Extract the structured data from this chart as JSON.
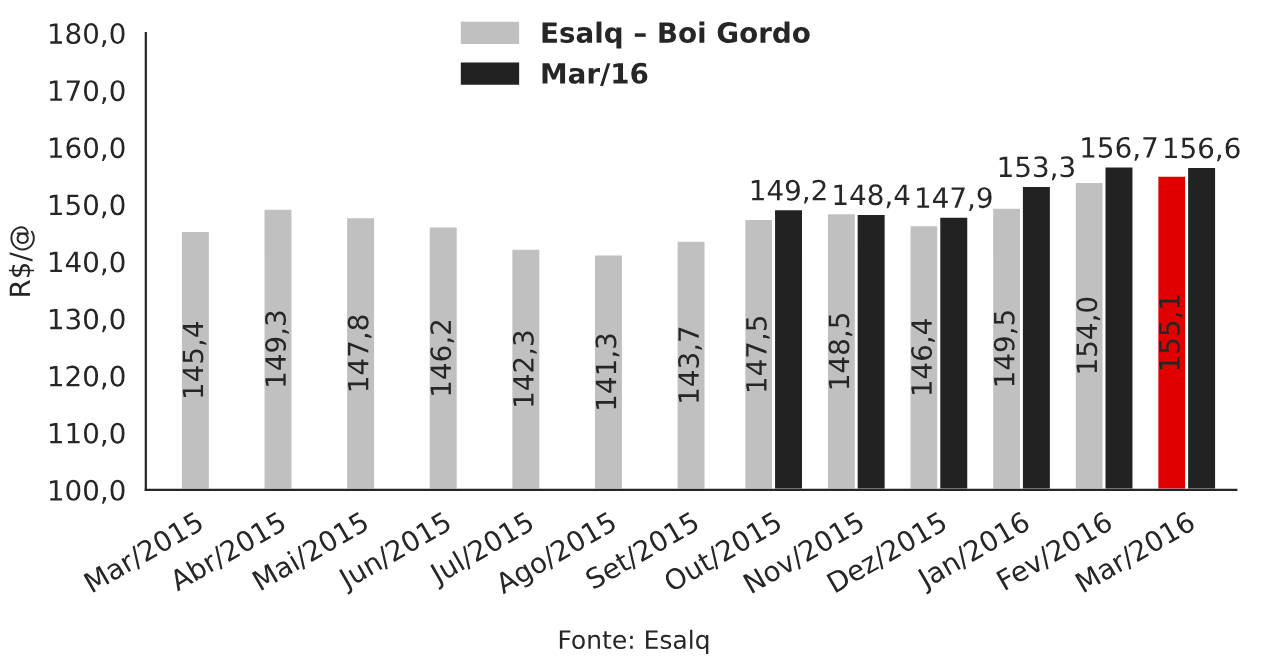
{
  "chart_data": {
    "type": "bar",
    "ylabel": "R$/@",
    "categories": [
      "Mar/2015",
      "Abr/2015",
      "Mai/2015",
      "Jun/2015",
      "Jul/2015",
      "Ago/2015",
      "Set/2015",
      "Out/2015",
      "Nov/2015",
      "Dez/2015",
      "Jan/2016",
      "Fev/2016",
      "Mar/2016"
    ],
    "series": [
      {
        "name": "Esalq – Boi Gordo",
        "color": "#c0c0c0",
        "colors": [
          "#c0c0c0",
          "#c0c0c0",
          "#c0c0c0",
          "#c0c0c0",
          "#c0c0c0",
          "#c0c0c0",
          "#c0c0c0",
          "#c0c0c0",
          "#c0c0c0",
          "#c0c0c0",
          "#c0c0c0",
          "#c0c0c0",
          "#e00000"
        ],
        "values": [
          145.4,
          149.3,
          147.8,
          146.2,
          142.3,
          141.3,
          143.7,
          147.5,
          148.5,
          146.4,
          149.5,
          154.0,
          155.1
        ],
        "value_labels": [
          "145,4",
          "149,3",
          "147,8",
          "146,2",
          "142,3",
          "141,3",
          "143,7",
          "147,5",
          "148,5",
          "146,4",
          "149,5",
          "154,0",
          "155,1"
        ]
      },
      {
        "name": "Mar/16",
        "color": "#222222",
        "values": [
          null,
          null,
          null,
          null,
          null,
          null,
          null,
          149.2,
          148.4,
          147.9,
          153.3,
          156.7,
          156.6
        ],
        "value_labels": [
          null,
          null,
          null,
          null,
          null,
          null,
          null,
          "149,2",
          "148,4",
          "147,9",
          "153,3",
          "156,7",
          "156,6"
        ]
      }
    ],
    "ylim": [
      100,
      180
    ],
    "yticks": [
      {
        "value": 100,
        "label": "100,0"
      },
      {
        "value": 110,
        "label": "110,0"
      },
      {
        "value": 120,
        "label": "120,0"
      },
      {
        "value": 130,
        "label": "130,0"
      },
      {
        "value": 140,
        "label": "140,0"
      },
      {
        "value": 150,
        "label": "150,0"
      },
      {
        "value": 160,
        "label": "160,0"
      },
      {
        "value": 170,
        "label": "170,0"
      },
      {
        "value": 180,
        "label": "180,0"
      }
    ],
    "grid": false,
    "legend": "top",
    "annotations": [
      "Fonte: Esalq"
    ]
  }
}
